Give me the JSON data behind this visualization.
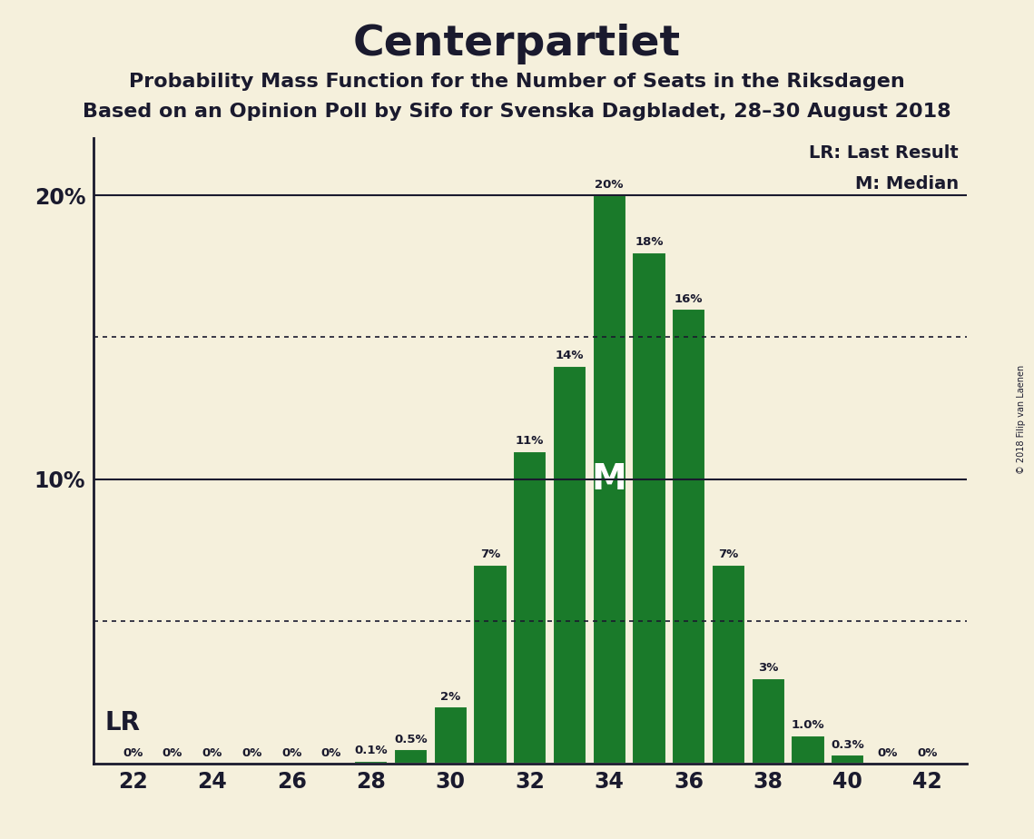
{
  "title": "Centerpartiet",
  "subtitle1": "Probability Mass Function for the Number of Seats in the Riksdagen",
  "subtitle2": "Based on an Opinion Poll by Sifo for Svenska Dagbladet, 28–30 August 2018",
  "copyright": "© 2018 Filip van Laenen",
  "seats": [
    22,
    23,
    24,
    25,
    26,
    27,
    28,
    29,
    30,
    31,
    32,
    33,
    34,
    35,
    36,
    37,
    38,
    39,
    40,
    41,
    42
  ],
  "probabilities": [
    0.0,
    0.0,
    0.0,
    0.0,
    0.0,
    0.0,
    0.1,
    0.5,
    2.0,
    7.0,
    11.0,
    14.0,
    20.0,
    18.0,
    16.0,
    7.0,
    3.0,
    1.0,
    0.3,
    0.0,
    0.0
  ],
  "bar_color": "#1a7a2a",
  "bar_edgecolor": "#f5f0dc",
  "background_color": "#f5f0dc",
  "text_color": "#1a1a2e",
  "median_seat": 34,
  "lr_seat": 22,
  "ytick_labels": [
    "10%",
    "20%"
  ],
  "ytick_values": [
    10,
    20
  ],
  "ylim": [
    0,
    22
  ],
  "xlim": [
    21,
    43
  ],
  "xticks": [
    22,
    24,
    26,
    28,
    30,
    32,
    34,
    36,
    38,
    40,
    42
  ],
  "legend_lr": "LR: Last Result",
  "legend_m": "M: Median",
  "dotted_lines": [
    5,
    15
  ],
  "solid_lines": [
    10,
    20
  ]
}
